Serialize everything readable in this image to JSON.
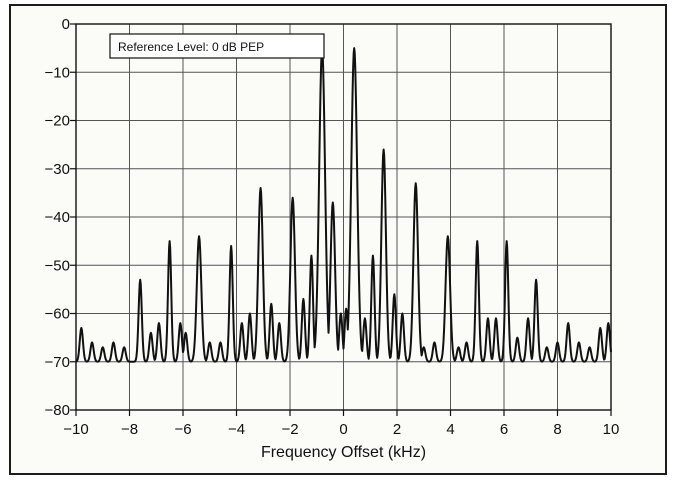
{
  "chart_data": {
    "type": "line",
    "title": "",
    "xlabel": "Frequency Offset (kHz)",
    "ylabel": "",
    "xlim": [
      -10,
      10
    ],
    "ylim": [
      -80,
      0
    ],
    "x_ticks": [
      -10,
      -8,
      -6,
      -4,
      -2,
      0,
      2,
      4,
      6,
      8,
      10
    ],
    "x_tick_labels": [
      "−10",
      "−8",
      "−6",
      "−4",
      "−2",
      "0",
      "2",
      "4",
      "6",
      "8",
      "10"
    ],
    "y_ticks": [
      0,
      -10,
      -20,
      -30,
      -40,
      -50,
      -60,
      -70,
      -80
    ],
    "y_tick_labels": [
      "0",
      "−10",
      "−20",
      "−30",
      "−40",
      "−50",
      "−60",
      "−70",
      "−80"
    ],
    "grid": true,
    "annotation": "Reference Level: 0 dB PEP",
    "floor_db": -70,
    "series": [
      {
        "line_color": "#111111",
        "peaks": [
          {
            "x": -9.8,
            "y": -63
          },
          {
            "x": -9.4,
            "y": -66
          },
          {
            "x": -9.0,
            "y": -67
          },
          {
            "x": -8.6,
            "y": -66
          },
          {
            "x": -8.2,
            "y": -67
          },
          {
            "x": -7.6,
            "y": -53
          },
          {
            "x": -7.2,
            "y": -64
          },
          {
            "x": -6.9,
            "y": -62
          },
          {
            "x": -6.5,
            "y": -45
          },
          {
            "x": -6.1,
            "y": -62
          },
          {
            "x": -5.9,
            "y": -64
          },
          {
            "x": -5.4,
            "y": -44
          },
          {
            "x": -5.0,
            "y": -66
          },
          {
            "x": -4.6,
            "y": -66
          },
          {
            "x": -4.2,
            "y": -46
          },
          {
            "x": -3.8,
            "y": -62
          },
          {
            "x": -3.5,
            "y": -60
          },
          {
            "x": -3.1,
            "y": -34
          },
          {
            "x": -2.7,
            "y": -58
          },
          {
            "x": -2.4,
            "y": -62
          },
          {
            "x": -1.9,
            "y": -36
          },
          {
            "x": -1.5,
            "y": -57
          },
          {
            "x": -1.2,
            "y": -48
          },
          {
            "x": -0.8,
            "y": -5
          },
          {
            "x": -0.4,
            "y": -37
          },
          {
            "x": -0.1,
            "y": -60
          },
          {
            "x": 0.1,
            "y": -59
          },
          {
            "x": 0.4,
            "y": -5
          },
          {
            "x": 0.8,
            "y": -61
          },
          {
            "x": 1.1,
            "y": -48
          },
          {
            "x": 1.5,
            "y": -26
          },
          {
            "x": 1.9,
            "y": -56
          },
          {
            "x": 2.2,
            "y": -60
          },
          {
            "x": 2.7,
            "y": -33
          },
          {
            "x": 3.0,
            "y": -67
          },
          {
            "x": 3.4,
            "y": -66
          },
          {
            "x": 3.9,
            "y": -44
          },
          {
            "x": 4.3,
            "y": -67
          },
          {
            "x": 4.6,
            "y": -66
          },
          {
            "x": 5.0,
            "y": -45
          },
          {
            "x": 5.4,
            "y": -61
          },
          {
            "x": 5.7,
            "y": -61
          },
          {
            "x": 6.1,
            "y": -45
          },
          {
            "x": 6.5,
            "y": -65
          },
          {
            "x": 6.9,
            "y": -61
          },
          {
            "x": 7.2,
            "y": -53
          },
          {
            "x": 7.6,
            "y": -67
          },
          {
            "x": 8.0,
            "y": -66
          },
          {
            "x": 8.4,
            "y": -62
          },
          {
            "x": 8.8,
            "y": -66
          },
          {
            "x": 9.2,
            "y": -67
          },
          {
            "x": 9.6,
            "y": -63
          },
          {
            "x": 9.9,
            "y": -62
          }
        ]
      }
    ]
  }
}
